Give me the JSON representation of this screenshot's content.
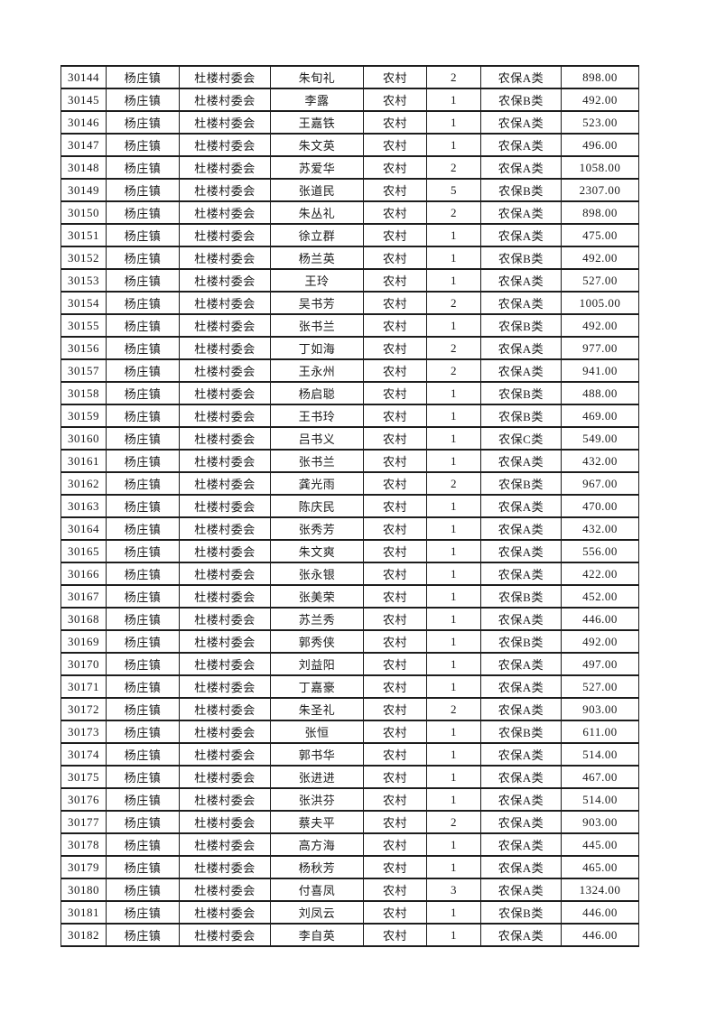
{
  "colors": {
    "page_background": "#ffffff",
    "border": "#1d1d1d",
    "text": "#1a1a1a"
  },
  "table": {
    "fields": [
      "serial-number",
      "town",
      "village-committee",
      "person-name",
      "residence-type",
      "person-count",
      "insurance-category",
      "amount"
    ],
    "rows": [
      [
        "30144",
        "杨庄镇",
        "杜楼村委会",
        "朱旬礼",
        "农村",
        "2",
        "农保A类",
        "898.00"
      ],
      [
        "30145",
        "杨庄镇",
        "杜楼村委会",
        "李露",
        "农村",
        "1",
        "农保B类",
        "492.00"
      ],
      [
        "30146",
        "杨庄镇",
        "杜楼村委会",
        "王嘉铁",
        "农村",
        "1",
        "农保A类",
        "523.00"
      ],
      [
        "30147",
        "杨庄镇",
        "杜楼村委会",
        "朱文英",
        "农村",
        "1",
        "农保A类",
        "496.00"
      ],
      [
        "30148",
        "杨庄镇",
        "杜楼村委会",
        "苏爱华",
        "农村",
        "2",
        "农保A类",
        "1058.00"
      ],
      [
        "30149",
        "杨庄镇",
        "杜楼村委会",
        "张道民",
        "农村",
        "5",
        "农保B类",
        "2307.00"
      ],
      [
        "30150",
        "杨庄镇",
        "杜楼村委会",
        "朱丛礼",
        "农村",
        "2",
        "农保A类",
        "898.00"
      ],
      [
        "30151",
        "杨庄镇",
        "杜楼村委会",
        "徐立群",
        "农村",
        "1",
        "农保A类",
        "475.00"
      ],
      [
        "30152",
        "杨庄镇",
        "杜楼村委会",
        "杨兰英",
        "农村",
        "1",
        "农保B类",
        "492.00"
      ],
      [
        "30153",
        "杨庄镇",
        "杜楼村委会",
        "王玲",
        "农村",
        "1",
        "农保A类",
        "527.00"
      ],
      [
        "30154",
        "杨庄镇",
        "杜楼村委会",
        "吴书芳",
        "农村",
        "2",
        "农保A类",
        "1005.00"
      ],
      [
        "30155",
        "杨庄镇",
        "杜楼村委会",
        "张书兰",
        "农村",
        "1",
        "农保B类",
        "492.00"
      ],
      [
        "30156",
        "杨庄镇",
        "杜楼村委会",
        "丁如海",
        "农村",
        "2",
        "农保A类",
        "977.00"
      ],
      [
        "30157",
        "杨庄镇",
        "杜楼村委会",
        "王永州",
        "农村",
        "2",
        "农保A类",
        "941.00"
      ],
      [
        "30158",
        "杨庄镇",
        "杜楼村委会",
        "杨启聪",
        "农村",
        "1",
        "农保B类",
        "488.00"
      ],
      [
        "30159",
        "杨庄镇",
        "杜楼村委会",
        "王书玲",
        "农村",
        "1",
        "农保B类",
        "469.00"
      ],
      [
        "30160",
        "杨庄镇",
        "杜楼村委会",
        "吕书义",
        "农村",
        "1",
        "农保C类",
        "549.00"
      ],
      [
        "30161",
        "杨庄镇",
        "杜楼村委会",
        "张书兰",
        "农村",
        "1",
        "农保A类",
        "432.00"
      ],
      [
        "30162",
        "杨庄镇",
        "杜楼村委会",
        "龚光雨",
        "农村",
        "2",
        "农保B类",
        "967.00"
      ],
      [
        "30163",
        "杨庄镇",
        "杜楼村委会",
        "陈庆民",
        "农村",
        "1",
        "农保A类",
        "470.00"
      ],
      [
        "30164",
        "杨庄镇",
        "杜楼村委会",
        "张秀芳",
        "农村",
        "1",
        "农保A类",
        "432.00"
      ],
      [
        "30165",
        "杨庄镇",
        "杜楼村委会",
        "朱文爽",
        "农村",
        "1",
        "农保A类",
        "556.00"
      ],
      [
        "30166",
        "杨庄镇",
        "杜楼村委会",
        "张永银",
        "农村",
        "1",
        "农保A类",
        "422.00"
      ],
      [
        "30167",
        "杨庄镇",
        "杜楼村委会",
        "张美荣",
        "农村",
        "1",
        "农保B类",
        "452.00"
      ],
      [
        "30168",
        "杨庄镇",
        "杜楼村委会",
        "苏兰秀",
        "农村",
        "1",
        "农保A类",
        "446.00"
      ],
      [
        "30169",
        "杨庄镇",
        "杜楼村委会",
        "郭秀侠",
        "农村",
        "1",
        "农保B类",
        "492.00"
      ],
      [
        "30170",
        "杨庄镇",
        "杜楼村委会",
        "刘益阳",
        "农村",
        "1",
        "农保A类",
        "497.00"
      ],
      [
        "30171",
        "杨庄镇",
        "杜楼村委会",
        "丁嘉豪",
        "农村",
        "1",
        "农保A类",
        "527.00"
      ],
      [
        "30172",
        "杨庄镇",
        "杜楼村委会",
        "朱圣礼",
        "农村",
        "2",
        "农保A类",
        "903.00"
      ],
      [
        "30173",
        "杨庄镇",
        "杜楼村委会",
        "张恒",
        "农村",
        "1",
        "农保B类",
        "611.00"
      ],
      [
        "30174",
        "杨庄镇",
        "杜楼村委会",
        "郭书华",
        "农村",
        "1",
        "农保A类",
        "514.00"
      ],
      [
        "30175",
        "杨庄镇",
        "杜楼村委会",
        "张进进",
        "农村",
        "1",
        "农保A类",
        "467.00"
      ],
      [
        "30176",
        "杨庄镇",
        "杜楼村委会",
        "张洪芬",
        "农村",
        "1",
        "农保A类",
        "514.00"
      ],
      [
        "30177",
        "杨庄镇",
        "杜楼村委会",
        "蔡夫平",
        "农村",
        "2",
        "农保A类",
        "903.00"
      ],
      [
        "30178",
        "杨庄镇",
        "杜楼村委会",
        "高方海",
        "农村",
        "1",
        "农保A类",
        "445.00"
      ],
      [
        "30179",
        "杨庄镇",
        "杜楼村委会",
        "杨秋芳",
        "农村",
        "1",
        "农保A类",
        "465.00"
      ],
      [
        "30180",
        "杨庄镇",
        "杜楼村委会",
        "付喜凤",
        "农村",
        "3",
        "农保A类",
        "1324.00"
      ],
      [
        "30181",
        "杨庄镇",
        "杜楼村委会",
        "刘凤云",
        "农村",
        "1",
        "农保B类",
        "446.00"
      ],
      [
        "30182",
        "杨庄镇",
        "杜楼村委会",
        "李自英",
        "农村",
        "1",
        "农保A类",
        "446.00"
      ]
    ]
  }
}
